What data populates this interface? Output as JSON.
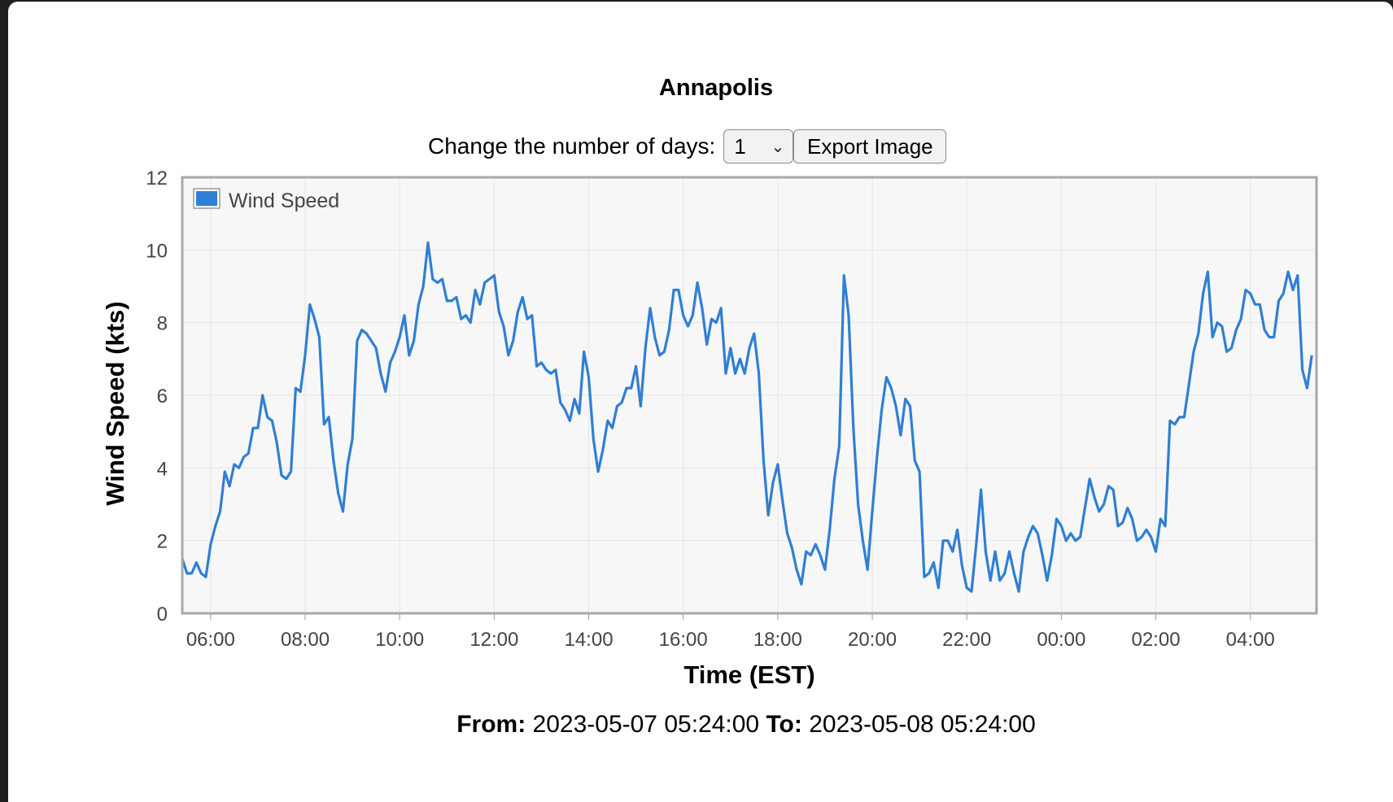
{
  "page": {
    "title": "Annapolis",
    "days_label": "Change the number of days:",
    "days_selected": "1",
    "export_label": "Export Image",
    "from_label": "From:",
    "from_value": "2023-05-07 05:24:00",
    "to_label": "To:",
    "to_value": "2023-05-08 05:24:00"
  },
  "chart_data": {
    "type": "line",
    "title": "",
    "xlabel": "Time (EST)",
    "ylabel": "Wind Speed (kts)",
    "ylim": [
      0,
      12
    ],
    "yticks": [
      0,
      2,
      4,
      6,
      8,
      10,
      12
    ],
    "xlim": [
      "2023-05-07 05:24",
      "2023-05-08 05:24"
    ],
    "xticks": [
      "06:00",
      "08:00",
      "10:00",
      "12:00",
      "14:00",
      "16:00",
      "18:00",
      "20:00",
      "22:00",
      "00:00",
      "02:00",
      "04:00"
    ],
    "grid": true,
    "legend": "top-left",
    "series": [
      {
        "name": "Wind Speed",
        "color": "#2f7fd4",
        "points": [
          [
            "05:24",
            1.5
          ],
          [
            "05:30",
            1.1
          ],
          [
            "05:36",
            1.1
          ],
          [
            "05:42",
            1.4
          ],
          [
            "05:48",
            1.1
          ],
          [
            "05:54",
            1.0
          ],
          [
            "06:00",
            1.9
          ],
          [
            "06:06",
            2.4
          ],
          [
            "06:12",
            2.8
          ],
          [
            "06:18",
            3.9
          ],
          [
            "06:24",
            3.5
          ],
          [
            "06:30",
            4.1
          ],
          [
            "06:36",
            4.0
          ],
          [
            "06:42",
            4.3
          ],
          [
            "06:48",
            4.4
          ],
          [
            "06:54",
            5.1
          ],
          [
            "07:00",
            5.1
          ],
          [
            "07:06",
            6.0
          ],
          [
            "07:12",
            5.4
          ],
          [
            "07:18",
            5.3
          ],
          [
            "07:24",
            4.7
          ],
          [
            "07:30",
            3.8
          ],
          [
            "07:36",
            3.7
          ],
          [
            "07:42",
            3.9
          ],
          [
            "07:48",
            6.2
          ],
          [
            "07:54",
            6.1
          ],
          [
            "08:00",
            7.1
          ],
          [
            "08:06",
            8.5
          ],
          [
            "08:12",
            8.1
          ],
          [
            "08:18",
            7.6
          ],
          [
            "08:24",
            5.2
          ],
          [
            "08:30",
            5.4
          ],
          [
            "08:36",
            4.2
          ],
          [
            "08:42",
            3.3
          ],
          [
            "08:48",
            2.8
          ],
          [
            "08:54",
            4.1
          ],
          [
            "09:00",
            4.8
          ],
          [
            "09:06",
            7.5
          ],
          [
            "09:12",
            7.8
          ],
          [
            "09:18",
            7.7
          ],
          [
            "09:24",
            7.5
          ],
          [
            "09:30",
            7.3
          ],
          [
            "09:36",
            6.6
          ],
          [
            "09:42",
            6.1
          ],
          [
            "09:48",
            6.9
          ],
          [
            "09:54",
            7.2
          ],
          [
            "10:00",
            7.6
          ],
          [
            "10:06",
            8.2
          ],
          [
            "10:12",
            7.1
          ],
          [
            "10:18",
            7.5
          ],
          [
            "10:24",
            8.5
          ],
          [
            "10:30",
            9.0
          ],
          [
            "10:36",
            10.2
          ],
          [
            "10:42",
            9.2
          ],
          [
            "10:48",
            9.1
          ],
          [
            "10:54",
            9.2
          ],
          [
            "11:00",
            8.6
          ],
          [
            "11:06",
            8.6
          ],
          [
            "11:12",
            8.7
          ],
          [
            "11:18",
            8.1
          ],
          [
            "11:24",
            8.2
          ],
          [
            "11:30",
            8.0
          ],
          [
            "11:36",
            8.9
          ],
          [
            "11:42",
            8.5
          ],
          [
            "11:48",
            9.1
          ],
          [
            "11:54",
            9.2
          ],
          [
            "12:00",
            9.3
          ],
          [
            "12:06",
            8.3
          ],
          [
            "12:12",
            7.9
          ],
          [
            "12:18",
            7.1
          ],
          [
            "12:24",
            7.5
          ],
          [
            "12:30",
            8.3
          ],
          [
            "12:36",
            8.7
          ],
          [
            "12:42",
            8.1
          ],
          [
            "12:48",
            8.2
          ],
          [
            "12:54",
            6.8
          ],
          [
            "13:00",
            6.9
          ],
          [
            "13:06",
            6.7
          ],
          [
            "13:12",
            6.6
          ],
          [
            "13:18",
            6.7
          ],
          [
            "13:24",
            5.8
          ],
          [
            "13:30",
            5.6
          ],
          [
            "13:36",
            5.3
          ],
          [
            "13:42",
            5.9
          ],
          [
            "13:48",
            5.5
          ],
          [
            "13:54",
            7.2
          ],
          [
            "14:00",
            6.5
          ],
          [
            "14:06",
            4.8
          ],
          [
            "14:12",
            3.9
          ],
          [
            "14:18",
            4.5
          ],
          [
            "14:24",
            5.3
          ],
          [
            "14:30",
            5.1
          ],
          [
            "14:36",
            5.7
          ],
          [
            "14:42",
            5.8
          ],
          [
            "14:48",
            6.2
          ],
          [
            "14:54",
            6.2
          ],
          [
            "15:00",
            6.8
          ],
          [
            "15:06",
            5.7
          ],
          [
            "15:12",
            7.3
          ],
          [
            "15:18",
            8.4
          ],
          [
            "15:24",
            7.6
          ],
          [
            "15:30",
            7.1
          ],
          [
            "15:36",
            7.2
          ],
          [
            "15:42",
            7.8
          ],
          [
            "15:48",
            8.9
          ],
          [
            "15:54",
            8.9
          ],
          [
            "16:00",
            8.2
          ],
          [
            "16:06",
            7.9
          ],
          [
            "16:12",
            8.2
          ],
          [
            "16:18",
            9.1
          ],
          [
            "16:24",
            8.4
          ],
          [
            "16:30",
            7.4
          ],
          [
            "16:36",
            8.1
          ],
          [
            "16:42",
            8.0
          ],
          [
            "16:48",
            8.4
          ],
          [
            "16:54",
            6.6
          ],
          [
            "17:00",
            7.3
          ],
          [
            "17:06",
            6.6
          ],
          [
            "17:12",
            7.0
          ],
          [
            "17:18",
            6.6
          ],
          [
            "17:24",
            7.3
          ],
          [
            "17:30",
            7.7
          ],
          [
            "17:36",
            6.6
          ],
          [
            "17:42",
            4.2
          ],
          [
            "17:48",
            2.7
          ],
          [
            "17:54",
            3.6
          ],
          [
            "18:00",
            4.1
          ],
          [
            "18:06",
            3.1
          ],
          [
            "18:12",
            2.2
          ],
          [
            "18:18",
            1.8
          ],
          [
            "18:24",
            1.2
          ],
          [
            "18:30",
            0.8
          ],
          [
            "18:36",
            1.7
          ],
          [
            "18:42",
            1.6
          ],
          [
            "18:48",
            1.9
          ],
          [
            "18:54",
            1.6
          ],
          [
            "19:00",
            1.2
          ],
          [
            "19:06",
            2.3
          ],
          [
            "19:12",
            3.7
          ],
          [
            "19:18",
            4.6
          ],
          [
            "19:24",
            9.3
          ],
          [
            "19:30",
            8.2
          ],
          [
            "19:36",
            5.1
          ],
          [
            "19:42",
            3.0
          ],
          [
            "19:48",
            2.0
          ],
          [
            "19:54",
            1.2
          ],
          [
            "20:00",
            2.8
          ],
          [
            "20:06",
            4.3
          ],
          [
            "20:12",
            5.6
          ],
          [
            "20:18",
            6.5
          ],
          [
            "20:24",
            6.2
          ],
          [
            "20:30",
            5.7
          ],
          [
            "20:36",
            4.9
          ],
          [
            "20:42",
            5.9
          ],
          [
            "20:48",
            5.7
          ],
          [
            "20:54",
            4.2
          ],
          [
            "21:00",
            3.9
          ],
          [
            "21:06",
            1.0
          ],
          [
            "21:12",
            1.1
          ],
          [
            "21:18",
            1.4
          ],
          [
            "21:24",
            0.7
          ],
          [
            "21:30",
            2.0
          ],
          [
            "21:36",
            2.0
          ],
          [
            "21:42",
            1.7
          ],
          [
            "21:48",
            2.3
          ],
          [
            "21:54",
            1.3
          ],
          [
            "22:00",
            0.7
          ],
          [
            "22:06",
            0.6
          ],
          [
            "22:12",
            1.9
          ],
          [
            "22:18",
            3.4
          ],
          [
            "22:24",
            1.7
          ],
          [
            "22:30",
            0.9
          ],
          [
            "22:36",
            1.7
          ],
          [
            "22:42",
            0.9
          ],
          [
            "22:48",
            1.1
          ],
          [
            "22:54",
            1.7
          ],
          [
            "23:00",
            1.1
          ],
          [
            "23:06",
            0.6
          ],
          [
            "23:12",
            1.7
          ],
          [
            "23:18",
            2.1
          ],
          [
            "23:24",
            2.4
          ],
          [
            "23:30",
            2.2
          ],
          [
            "23:36",
            1.6
          ],
          [
            "23:42",
            0.9
          ],
          [
            "23:48",
            1.6
          ],
          [
            "23:54",
            2.6
          ],
          [
            "00:00",
            2.4
          ],
          [
            "00:06",
            2.0
          ],
          [
            "00:12",
            2.2
          ],
          [
            "00:18",
            2.0
          ],
          [
            "00:24",
            2.1
          ],
          [
            "00:30",
            2.9
          ],
          [
            "00:36",
            3.7
          ],
          [
            "00:42",
            3.2
          ],
          [
            "00:48",
            2.8
          ],
          [
            "00:54",
            3.0
          ],
          [
            "01:00",
            3.5
          ],
          [
            "01:06",
            3.4
          ],
          [
            "01:12",
            2.4
          ],
          [
            "01:18",
            2.5
          ],
          [
            "01:24",
            2.9
          ],
          [
            "01:30",
            2.6
          ],
          [
            "01:36",
            2.0
          ],
          [
            "01:42",
            2.1
          ],
          [
            "01:48",
            2.3
          ],
          [
            "01:54",
            2.1
          ],
          [
            "02:00",
            1.7
          ],
          [
            "02:06",
            2.6
          ],
          [
            "02:12",
            2.4
          ],
          [
            "02:18",
            5.3
          ],
          [
            "02:24",
            5.2
          ],
          [
            "02:30",
            5.4
          ],
          [
            "02:36",
            5.4
          ],
          [
            "02:42",
            6.3
          ],
          [
            "02:48",
            7.2
          ],
          [
            "02:54",
            7.7
          ],
          [
            "03:00",
            8.8
          ],
          [
            "03:06",
            9.4
          ],
          [
            "03:12",
            7.6
          ],
          [
            "03:18",
            8.0
          ],
          [
            "03:24",
            7.9
          ],
          [
            "03:30",
            7.2
          ],
          [
            "03:36",
            7.3
          ],
          [
            "03:42",
            7.8
          ],
          [
            "03:48",
            8.1
          ],
          [
            "03:54",
            8.9
          ],
          [
            "04:00",
            8.8
          ],
          [
            "04:06",
            8.5
          ],
          [
            "04:12",
            8.5
          ],
          [
            "04:18",
            7.8
          ],
          [
            "04:24",
            7.6
          ],
          [
            "04:30",
            7.6
          ],
          [
            "04:36",
            8.6
          ],
          [
            "04:42",
            8.8
          ],
          [
            "04:48",
            9.4
          ],
          [
            "04:54",
            8.9
          ],
          [
            "05:00",
            9.3
          ],
          [
            "05:06",
            6.7
          ],
          [
            "05:12",
            6.2
          ],
          [
            "05:18",
            7.1
          ]
        ]
      }
    ]
  }
}
